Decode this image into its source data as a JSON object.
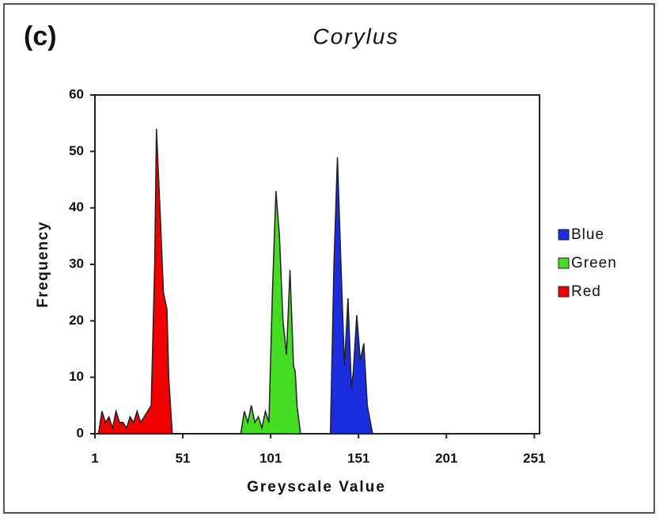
{
  "chart_data": {
    "type": "area",
    "panel_label": "(c)",
    "title": "Corylus",
    "x_label": "Greyscale Value",
    "y_label": "Frequency",
    "xlim": [
      1,
      254
    ],
    "ylim": [
      0,
      60
    ],
    "xticks": [
      1,
      51,
      101,
      151,
      201,
      251
    ],
    "yticks": [
      0,
      10,
      20,
      30,
      40,
      50,
      60
    ],
    "grid": false,
    "legend": "right",
    "series": [
      {
        "name": "Blue",
        "color": "#1a2ee0",
        "x": [
          135,
          137,
          139,
          141,
          143,
          145,
          147,
          148,
          150,
          152,
          154,
          156,
          159
        ],
        "values": [
          0,
          30,
          49,
          30,
          12,
          24,
          8,
          11,
          21,
          13,
          16,
          5,
          0
        ]
      },
      {
        "name": "Green",
        "color": "#44dd22",
        "x": [
          84,
          86,
          88,
          90,
          92,
          94,
          96,
          98,
          100,
          102,
          104,
          106,
          108,
          110,
          112,
          114,
          115,
          116,
          118
        ],
        "values": [
          0,
          4,
          2,
          5,
          2,
          3,
          1,
          4,
          2,
          25,
          43,
          35,
          20,
          14,
          29,
          12,
          11,
          5,
          0
        ]
      },
      {
        "name": "Red",
        "color": "#f00000",
        "x": [
          3,
          5,
          7,
          9,
          11,
          13,
          15,
          17,
          19,
          21,
          23,
          25,
          27,
          29,
          31,
          33,
          35,
          36,
          38,
          40,
          42,
          43,
          45
        ],
        "values": [
          0,
          4,
          2,
          3,
          1,
          4,
          2,
          2,
          1,
          3,
          2,
          4,
          2,
          3,
          4,
          5,
          30,
          54,
          40,
          25,
          22,
          10,
          0
        ]
      }
    ]
  }
}
